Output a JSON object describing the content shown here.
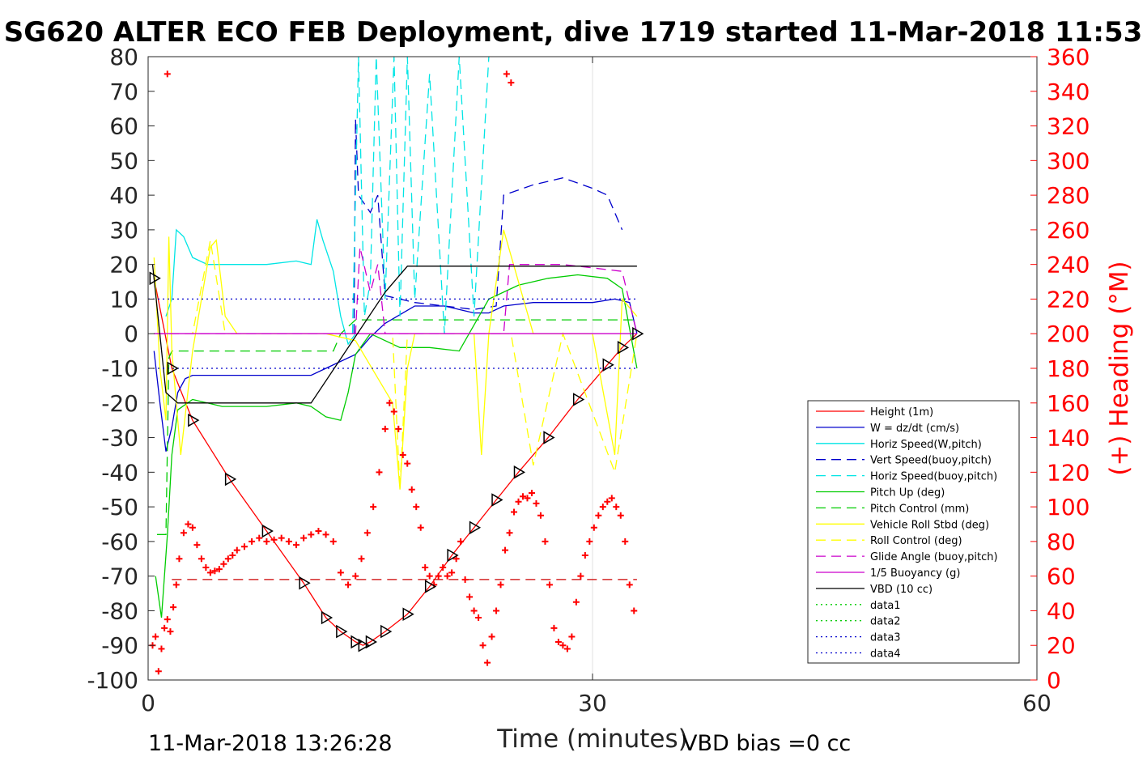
{
  "chart_data": {
    "type": "line",
    "title": "SG620 ALTER ECO FEB Deployment, dive 1719 started 11-Mar-2018 11:53",
    "xlabel": "Time (minutes)",
    "ylabel_right": "(+) Heading (°M)",
    "xlim": [
      0,
      60
    ],
    "ylim_left": [
      -100,
      80
    ],
    "ylim_right": [
      0,
      360
    ],
    "xticks": [
      "0",
      "30",
      "60"
    ],
    "yticks_left": [
      "80",
      "70",
      "60",
      "50",
      "40",
      "30",
      "20",
      "10",
      "0",
      "-10",
      "-20",
      "-30",
      "-40",
      "-50",
      "-60",
      "-70",
      "-80",
      "-90",
      "-100"
    ],
    "yticks_right": [
      "360",
      "340",
      "320",
      "300",
      "280",
      "260",
      "240",
      "220",
      "200",
      "180",
      "160",
      "140",
      "120",
      "100",
      "80",
      "60",
      "40",
      "20",
      "0"
    ],
    "grid": "x-only",
    "legend_position": "lower-right",
    "footer_left": "11-Mar-2018 13:26:28",
    "footer_right": "VBD bias =0 cc",
    "colors": {
      "height": "#ff0000",
      "w": "#0000cc",
      "horiz": "#00e5e5",
      "pitch": "#00cc00",
      "roll": "#ffff00",
      "glide": "#cc00cc",
      "vbd": "#000000",
      "heading": "#ff0000"
    },
    "series": [
      {
        "name": "Height (1m)",
        "color": "#ff0000",
        "style": "solid",
        "x": [
          0.4,
          1.6,
          3,
          5.5,
          8,
          10.5,
          12,
          13,
          14,
          14.5,
          15,
          16,
          17.5,
          19,
          20.5,
          22,
          23.5,
          25,
          27,
          29,
          31,
          32,
          33
        ],
        "y": [
          16,
          -10,
          -25,
          -42,
          -57,
          -72,
          -82,
          -86,
          -89,
          -90,
          -89,
          -86,
          -81,
          -73,
          -64,
          -56,
          -48,
          -40,
          -30,
          -19,
          -9,
          -4,
          0
        ]
      },
      {
        "name": "W = dz/dt (cm/s)",
        "color": "#0000cc",
        "style": "solid",
        "x": [
          0.4,
          0.8,
          1.2,
          1.6,
          2,
          2.5,
          3,
          4,
          6,
          8,
          10,
          11,
          12,
          13,
          14,
          15,
          16,
          18,
          20,
          22,
          23,
          24,
          26,
          28,
          30,
          31.5,
          32.5,
          33
        ],
        "y": [
          -5,
          -20,
          -34,
          -27,
          -17,
          -13,
          -12,
          -12,
          -12,
          -12,
          -12,
          -12,
          -10,
          -8,
          -6,
          -1,
          3,
          8,
          8,
          6,
          6,
          8,
          9,
          9,
          9,
          10,
          9,
          0
        ]
      },
      {
        "name": "Horiz Speed(W,pitch)",
        "color": "#00e5e5",
        "style": "solid",
        "x": [
          1.2,
          1.6,
          1.9,
          2.4,
          3,
          4,
          6,
          8,
          10,
          11,
          11.4,
          11.8,
          12.5,
          13,
          13.5,
          14
        ],
        "y": [
          5,
          10,
          30,
          28,
          22,
          20,
          20,
          20,
          21,
          20,
          33,
          27,
          18,
          5,
          -3,
          0
        ]
      },
      {
        "name": "Vert Speed(buoy,pitch)",
        "color": "#0000cc",
        "style": "dash",
        "x": [
          13.9,
          14,
          14.2,
          15,
          15.5,
          16,
          18,
          20,
          22,
          23.5,
          24,
          26,
          28,
          30,
          31,
          32
        ],
        "y": [
          0,
          62,
          40,
          35,
          40,
          11,
          9,
          8,
          7,
          8,
          40,
          43,
          45,
          42,
          40,
          30
        ]
      },
      {
        "name": "Horiz Speed(buoy,pitch)",
        "color": "#00e5e5",
        "style": "dash",
        "x": [
          13.8,
          14.2,
          14.6,
          15,
          15.4,
          16,
          16.6,
          17,
          17.5,
          18,
          19,
          20,
          21,
          22,
          23
        ],
        "y": [
          0,
          80,
          5,
          15,
          80,
          10,
          80,
          5,
          80,
          10,
          75,
          0,
          80,
          5,
          80
        ]
      },
      {
        "name": "Pitch Up (deg)",
        "color": "#00cc00",
        "style": "solid",
        "x": [
          0.5,
          0.9,
          1.3,
          1.6,
          2,
          3,
          4,
          5,
          6,
          8,
          10,
          11,
          12,
          13,
          13.5,
          14,
          15,
          17,
          19,
          21,
          23,
          25,
          27,
          29,
          31,
          32,
          33
        ],
        "y": [
          -70,
          -82,
          -58,
          -35,
          -22,
          -19,
          -20,
          -21,
          -21,
          -21,
          -20,
          -21,
          -24,
          -25,
          -17,
          -6,
          0,
          -4,
          -4,
          -5,
          10,
          14,
          16,
          17,
          16,
          13,
          -10
        ]
      },
      {
        "name": "Pitch Control (mm)",
        "color": "#00cc00",
        "style": "dash",
        "x": [
          0.6,
          1.2,
          1.4,
          1.6,
          3,
          6,
          9,
          11,
          12.5,
          13,
          14,
          16,
          20,
          24,
          28,
          33
        ],
        "y": [
          -58,
          -58,
          -7,
          -5,
          -5,
          -5,
          -5,
          -5,
          -5,
          0,
          4,
          4,
          4,
          4,
          4,
          4
        ]
      },
      {
        "name": "Vehicle Roll Stbd (deg)",
        "color": "#ffff00",
        "style": "solid",
        "x": [
          0.4,
          0.8,
          1.2,
          1.4,
          1.6,
          2.2,
          3,
          4.2,
          4.6,
          5.2,
          6,
          8,
          10,
          12,
          14,
          16.5,
          17,
          17.5,
          18,
          20,
          22,
          22.5,
          23,
          24,
          26,
          28,
          30,
          31.5,
          32,
          33
        ],
        "y": [
          22,
          -10,
          -25,
          28,
          -5,
          -35,
          -5,
          25,
          27,
          5,
          0,
          0,
          0,
          0,
          -2,
          -20,
          -45,
          -10,
          0,
          0,
          0,
          -35,
          0,
          30,
          0,
          0,
          0,
          -35,
          10,
          5
        ]
      },
      {
        "name": "Roll Control (deg)",
        "color": "#ffff00",
        "style": "dash",
        "x": [
          0.4,
          3,
          4.2,
          5.2,
          8,
          12,
          16.5,
          17,
          17.5,
          22.5,
          24.5,
          26,
          28,
          31.5,
          33
        ],
        "y": [
          0,
          0,
          27,
          0,
          0,
          0,
          0,
          -45,
          0,
          0,
          0,
          -38,
          0,
          -40,
          0
        ]
      },
      {
        "name": "Glide Angle (buoy,pitch)",
        "color": "#cc00cc",
        "style": "dash",
        "x": [
          0.4,
          14,
          14.3,
          15,
          15.5,
          16,
          24,
          24.4,
          26,
          28,
          30,
          32,
          33
        ],
        "y": [
          0,
          0,
          25,
          12,
          20,
          0,
          0,
          20,
          20,
          20,
          19,
          18,
          0
        ]
      },
      {
        "name": "1/5 Buoyancy (g)",
        "color": "#cc00cc",
        "style": "solid",
        "x": [
          0.4,
          14,
          16,
          24,
          25,
          33
        ],
        "y": [
          0,
          0,
          0,
          0,
          0,
          0
        ]
      },
      {
        "name": "VBD (10 cc)",
        "color": "#000000",
        "style": "solid",
        "x": [
          0.3,
          1.2,
          2,
          11,
          16,
          17.5,
          33
        ],
        "y": [
          20,
          -17,
          -20,
          -20,
          12,
          19.5,
          19.5
        ]
      },
      {
        "name": "data1",
        "color": "#00cc00",
        "style": "dot",
        "x": [],
        "y": []
      },
      {
        "name": "data2",
        "color": "#00cc00",
        "style": "dot",
        "x": [],
        "y": []
      },
      {
        "name": "data3",
        "color": "#0000cc",
        "style": "dot",
        "x": [
          0,
          33
        ],
        "y": [
          10,
          10
        ]
      },
      {
        "name": "data4",
        "color": "#0000cc",
        "style": "dot",
        "x": [
          0,
          33
        ],
        "y": [
          -10,
          -10
        ]
      },
      {
        "name": "",
        "color": "#cc0000",
        "style": "dash",
        "axis": "left",
        "x": [
          1.6,
          33
        ],
        "y": [
          -71,
          -71
        ]
      },
      {
        "name": "",
        "color": "#ff0000",
        "style": "plus",
        "axis": "right",
        "x": [
          0.3,
          0.5,
          0.7,
          0.9,
          1.1,
          1.3,
          1.5,
          1.7,
          1.9,
          2.1,
          2.4,
          2.7,
          3.0,
          3.3,
          3.6,
          3.9,
          4.2,
          4.5,
          4.8,
          5.1,
          5.4,
          5.7,
          6.0,
          6.5,
          7.0,
          7.5,
          8.0,
          8.5,
          9.0,
          9.5,
          10.0,
          10.5,
          11.0,
          11.5,
          12.0,
          12.5,
          13.0,
          13.5,
          14.0,
          14.4,
          14.8,
          15.2,
          15.6,
          16.0,
          16.3,
          16.6,
          16.9,
          17.2,
          17.5,
          17.8,
          18.1,
          18.4,
          18.7,
          19.0,
          19.3,
          19.6,
          19.9,
          20.2,
          20.5,
          20.8,
          21.1,
          21.4,
          21.7,
          22.0,
          22.3,
          22.6,
          22.9,
          23.2,
          23.5,
          23.8,
          24.1,
          24.4,
          24.7,
          25.0,
          25.3,
          25.6,
          25.9,
          26.2,
          26.5,
          26.8,
          27.1,
          27.4,
          27.7,
          28.0,
          28.3,
          28.6,
          28.9,
          29.2,
          29.5,
          29.8,
          30.1,
          30.4,
          30.7,
          31.0,
          31.3,
          31.6,
          31.9,
          32.2,
          32.5,
          32.8,
          1.3,
          24.2,
          24.5
        ],
        "y": [
          20,
          25,
          5,
          18,
          30,
          35,
          28,
          42,
          55,
          70,
          85,
          90,
          88,
          78,
          70,
          65,
          62,
          63,
          64,
          67,
          70,
          72,
          75,
          77,
          80,
          82,
          80,
          81,
          82,
          80,
          78,
          82,
          84,
          86,
          84,
          80,
          62,
          55,
          60,
          70,
          85,
          100,
          120,
          145,
          160,
          155,
          145,
          130,
          125,
          110,
          100,
          88,
          65,
          60,
          55,
          60,
          65,
          60,
          62,
          70,
          80,
          58,
          48,
          40,
          36,
          20,
          10,
          25,
          40,
          55,
          75,
          85,
          97,
          103,
          106,
          105,
          108,
          102,
          95,
          80,
          55,
          30,
          22,
          20,
          18,
          25,
          45,
          60,
          72,
          80,
          88,
          95,
          100,
          103,
          105,
          100,
          95,
          80,
          55,
          40,
          350,
          350,
          345
        ]
      }
    ]
  }
}
